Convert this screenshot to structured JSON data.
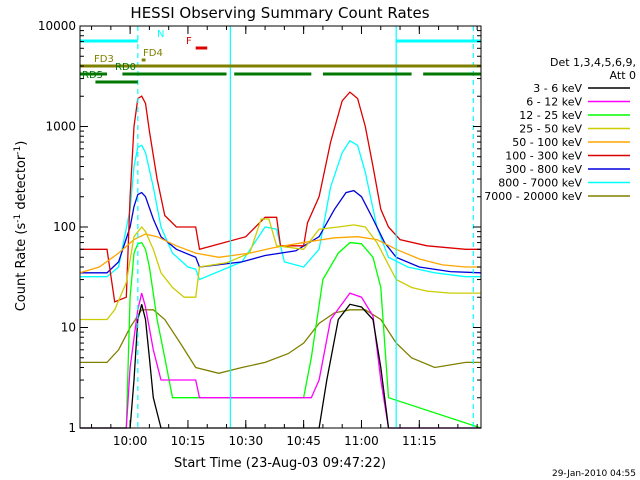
{
  "chart_data": {
    "type": "line",
    "title": "HESSI Observing Summary Count Rates",
    "xlabel": "Start Time (23-Aug-03 09:47:22)",
    "ylabel_main": "Count Rate (s",
    "ylabel_sup1": "-1",
    "ylabel_mid": " detector",
    "ylabel_sup2": "-1",
    "ylabel_end": ")",
    "timestamp": "29-Jan-2010 04:55",
    "y_scale": "log",
    "ylim": [
      1,
      10000
    ],
    "xlim_minutes_after_0947": [
      0,
      104
    ],
    "x_ticks": [
      {
        "label": "10:00",
        "t": 13
      },
      {
        "label": "10:15",
        "t": 28
      },
      {
        "label": "10:30",
        "t": 43
      },
      {
        "label": "10:45",
        "t": 58
      },
      {
        "label": "11:00",
        "t": 73
      },
      {
        "label": "11:15",
        "t": 88
      }
    ],
    "y_ticks": [
      {
        "label": "1",
        "v": 1
      },
      {
        "label": "10",
        "v": 10
      },
      {
        "label": "100",
        "v": 100
      },
      {
        "label": "1000",
        "v": 1000
      },
      {
        "label": "10000",
        "v": 10000
      }
    ],
    "legend_title_1": "Det 1,3,4,5,6,9,",
    "legend_title_2": "Att 0",
    "series": [
      {
        "name": "3 - 6 keV",
        "color": "#000000",
        "points": [
          [
            0,
            1
          ],
          [
            13,
            1
          ],
          [
            14,
            3
          ],
          [
            15,
            12
          ],
          [
            16,
            17
          ],
          [
            17,
            12
          ],
          [
            18,
            5
          ],
          [
            19,
            2
          ],
          [
            21,
            1
          ],
          [
            62,
            1
          ],
          [
            64,
            3
          ],
          [
            67,
            12
          ],
          [
            70,
            17
          ],
          [
            73,
            16
          ],
          [
            76,
            12
          ],
          [
            78,
            4
          ],
          [
            80,
            1
          ],
          [
            104,
            1
          ]
        ]
      },
      {
        "name": "6 - 12 keV",
        "color": "#ff00ff",
        "points": [
          [
            0,
            1
          ],
          [
            12,
            1
          ],
          [
            13,
            4
          ],
          [
            15,
            15
          ],
          [
            16,
            22
          ],
          [
            17,
            16
          ],
          [
            19,
            6
          ],
          [
            21,
            3
          ],
          [
            30,
            3
          ],
          [
            31,
            2
          ],
          [
            43,
            2
          ],
          [
            58,
            2
          ],
          [
            60,
            2
          ],
          [
            62,
            3
          ],
          [
            65,
            12
          ],
          [
            70,
            22
          ],
          [
            73,
            20
          ],
          [
            76,
            13
          ],
          [
            78,
            3
          ],
          [
            80,
            1
          ],
          [
            104,
            1
          ]
        ]
      },
      {
        "name": "12 - 25 keV",
        "color": "#00ff00",
        "points": [
          [
            0,
            1
          ],
          [
            12,
            1
          ],
          [
            13,
            20
          ],
          [
            14,
            55
          ],
          [
            15,
            68
          ],
          [
            16,
            70
          ],
          [
            17,
            60
          ],
          [
            18,
            40
          ],
          [
            20,
            12
          ],
          [
            22,
            5
          ],
          [
            24,
            2
          ],
          [
            43,
            2
          ],
          [
            58,
            2
          ],
          [
            60,
            5
          ],
          [
            63,
            30
          ],
          [
            67,
            55
          ],
          [
            70,
            70
          ],
          [
            73,
            68
          ],
          [
            76,
            50
          ],
          [
            78,
            25
          ],
          [
            80,
            2
          ],
          [
            104,
            1
          ]
        ]
      },
      {
        "name": "25 - 50 keV",
        "color": "#cccc00",
        "points": [
          [
            0,
            12
          ],
          [
            7,
            12
          ],
          [
            9,
            15
          ],
          [
            12,
            28
          ],
          [
            14,
            80
          ],
          [
            16,
            100
          ],
          [
            17,
            90
          ],
          [
            19,
            60
          ],
          [
            21,
            35
          ],
          [
            24,
            25
          ],
          [
            27,
            20
          ],
          [
            30,
            20
          ],
          [
            31,
            40
          ],
          [
            38,
            44
          ],
          [
            44,
            55
          ],
          [
            47,
            120
          ],
          [
            49,
            120
          ],
          [
            51,
            65
          ],
          [
            58,
            60
          ],
          [
            62,
            95
          ],
          [
            67,
            100
          ],
          [
            71,
            105
          ],
          [
            74,
            100
          ],
          [
            77,
            70
          ],
          [
            79,
            50
          ],
          [
            82,
            30
          ],
          [
            86,
            25
          ],
          [
            90,
            23
          ],
          [
            96,
            22
          ],
          [
            104,
            22
          ]
        ]
      },
      {
        "name": "50 - 100 keV",
        "color": "#ffa500",
        "points": [
          [
            0,
            35
          ],
          [
            5,
            40
          ],
          [
            10,
            55
          ],
          [
            14,
            75
          ],
          [
            17,
            85
          ],
          [
            20,
            80
          ],
          [
            25,
            65
          ],
          [
            30,
            55
          ],
          [
            36,
            50
          ],
          [
            44,
            55
          ],
          [
            50,
            62
          ],
          [
            56,
            68
          ],
          [
            60,
            72
          ],
          [
            66,
            78
          ],
          [
            72,
            80
          ],
          [
            77,
            75
          ],
          [
            82,
            60
          ],
          [
            88,
            48
          ],
          [
            94,
            42
          ],
          [
            100,
            40
          ],
          [
            104,
            40
          ]
        ]
      },
      {
        "name": "100 - 300 keV",
        "color": "#dd0000",
        "points": [
          [
            0,
            60
          ],
          [
            7,
            60
          ],
          [
            9,
            18
          ],
          [
            12,
            20
          ],
          [
            13,
            200
          ],
          [
            14,
            1000
          ],
          [
            15,
            1900
          ],
          [
            16,
            2000
          ],
          [
            17,
            1700
          ],
          [
            18,
            900
          ],
          [
            20,
            300
          ],
          [
            22,
            130
          ],
          [
            25,
            100
          ],
          [
            30,
            100
          ],
          [
            31,
            60
          ],
          [
            43,
            80
          ],
          [
            48,
            125
          ],
          [
            51,
            125
          ],
          [
            52,
            65
          ],
          [
            58,
            65
          ],
          [
            59,
            110
          ],
          [
            62,
            200
          ],
          [
            65,
            700
          ],
          [
            68,
            1800
          ],
          [
            70,
            2200
          ],
          [
            72,
            1900
          ],
          [
            74,
            1000
          ],
          [
            76,
            400
          ],
          [
            78,
            150
          ],
          [
            80,
            100
          ],
          [
            83,
            75
          ],
          [
            90,
            65
          ],
          [
            100,
            60
          ],
          [
            104,
            60
          ]
        ]
      },
      {
        "name": "300 - 800 keV",
        "color": "#0000dd",
        "points": [
          [
            0,
            35
          ],
          [
            7,
            35
          ],
          [
            10,
            45
          ],
          [
            13,
            100
          ],
          [
            14,
            160
          ],
          [
            15,
            210
          ],
          [
            16,
            220
          ],
          [
            17,
            200
          ],
          [
            19,
            120
          ],
          [
            21,
            80
          ],
          [
            25,
            60
          ],
          [
            30,
            50
          ],
          [
            31,
            40
          ],
          [
            42,
            45
          ],
          [
            48,
            52
          ],
          [
            56,
            58
          ],
          [
            62,
            80
          ],
          [
            66,
            150
          ],
          [
            69,
            220
          ],
          [
            71,
            230
          ],
          [
            73,
            200
          ],
          [
            76,
            120
          ],
          [
            79,
            70
          ],
          [
            82,
            50
          ],
          [
            88,
            40
          ],
          [
            96,
            36
          ],
          [
            104,
            35
          ]
        ]
      },
      {
        "name": "800 - 7000 keV",
        "color": "#00ffff",
        "points": [
          [
            0,
            32
          ],
          [
            7,
            32
          ],
          [
            10,
            40
          ],
          [
            13,
            150
          ],
          [
            14,
            400
          ],
          [
            15,
            620
          ],
          [
            16,
            650
          ],
          [
            17,
            550
          ],
          [
            19,
            250
          ],
          [
            21,
            100
          ],
          [
            24,
            55
          ],
          [
            28,
            40
          ],
          [
            30,
            38
          ],
          [
            31,
            30
          ],
          [
            42,
            45
          ],
          [
            48,
            100
          ],
          [
            51,
            95
          ],
          [
            53,
            45
          ],
          [
            58,
            40
          ],
          [
            62,
            60
          ],
          [
            65,
            250
          ],
          [
            68,
            550
          ],
          [
            70,
            720
          ],
          [
            72,
            650
          ],
          [
            74,
            350
          ],
          [
            77,
            100
          ],
          [
            80,
            50
          ],
          [
            85,
            40
          ],
          [
            92,
            35
          ],
          [
            100,
            32
          ],
          [
            104,
            32
          ]
        ]
      },
      {
        "name": "7000 - 20000 keV",
        "color": "#808000",
        "points": [
          [
            0,
            4.5
          ],
          [
            7,
            4.5
          ],
          [
            10,
            6
          ],
          [
            13,
            10
          ],
          [
            16,
            15
          ],
          [
            19,
            15
          ],
          [
            22,
            12
          ],
          [
            26,
            7
          ],
          [
            30,
            4
          ],
          [
            36,
            3.5
          ],
          [
            42,
            4
          ],
          [
            48,
            4.5
          ],
          [
            54,
            5.5
          ],
          [
            58,
            7
          ],
          [
            62,
            11
          ],
          [
            66,
            14
          ],
          [
            70,
            15
          ],
          [
            74,
            15
          ],
          [
            78,
            12
          ],
          [
            82,
            7
          ],
          [
            86,
            5
          ],
          [
            92,
            4
          ],
          [
            100,
            4.5
          ],
          [
            104,
            4.5
          ]
        ]
      }
    ],
    "state_bars": [
      {
        "label": "N",
        "color": "#00ffff",
        "segments": [
          [
            0,
            15
          ],
          [
            82,
            104
          ]
        ]
      },
      {
        "label": "F",
        "color": "#dd0000",
        "segments": [
          [
            30,
            33
          ]
        ]
      },
      {
        "label": "FD3",
        "color": "#808000",
        "segments": [
          [
            0,
            104
          ]
        ]
      },
      {
        "label": "FD4",
        "color": "#808000",
        "segments": [
          [
            16,
            17
          ]
        ]
      },
      {
        "label": "RD0",
        "color": "#007700",
        "segments": [
          [
            0,
            7
          ],
          [
            11,
            38
          ],
          [
            40,
            60
          ],
          [
            63,
            86
          ],
          [
            89,
            104
          ]
        ]
      },
      {
        "label": "RD5",
        "color": "#007700",
        "segments": [
          [
            4,
            15
          ]
        ]
      }
    ],
    "vertical_markers": [
      {
        "t": 15,
        "color": "#00ffff",
        "style": "dashed"
      },
      {
        "t": 39,
        "color": "#00ffff",
        "style": "solid"
      },
      {
        "t": 82,
        "color": "#00ffff",
        "style": "solid"
      },
      {
        "t": 102,
        "color": "#00ffff",
        "style": "dashed"
      }
    ]
  }
}
